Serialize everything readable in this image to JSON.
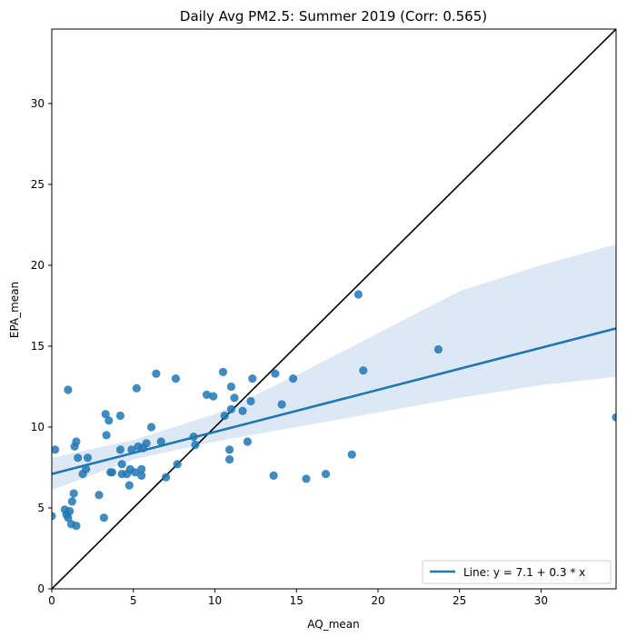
{
  "chart_data": {
    "type": "scatter",
    "title": "Daily Avg PM2.5: Summer 2019 (Corr: 0.565)",
    "xlabel": "AQ_mean",
    "ylabel": "EPA_mean",
    "xlim": [
      0,
      34.6
    ],
    "ylim": [
      0,
      34.6
    ],
    "xticks": [
      0,
      5,
      10,
      15,
      20,
      25,
      30
    ],
    "yticks": [
      0,
      5,
      10,
      15,
      20,
      25,
      30
    ],
    "grid": false,
    "legend": {
      "position": "lower-right",
      "entries": [
        "Line: y = 7.1 + 0.3 * x"
      ]
    },
    "colors": {
      "points": "#1f77b4",
      "regression": "#1f77b4",
      "band": "#aec7e8",
      "identity": "#000000"
    },
    "points": [
      [
        0.0,
        4.5
      ],
      [
        0.2,
        8.6
      ],
      [
        0.8,
        4.9
      ],
      [
        0.9,
        4.6
      ],
      [
        1.0,
        4.4
      ],
      [
        1.0,
        12.3
      ],
      [
        1.1,
        4.8
      ],
      [
        1.2,
        4.0
      ],
      [
        1.25,
        5.4
      ],
      [
        1.35,
        5.9
      ],
      [
        1.4,
        8.8
      ],
      [
        1.5,
        9.1
      ],
      [
        1.5,
        3.9
      ],
      [
        1.6,
        8.1
      ],
      [
        1.9,
        7.1
      ],
      [
        2.1,
        7.4
      ],
      [
        2.2,
        8.1
      ],
      [
        2.9,
        5.8
      ],
      [
        3.2,
        4.4
      ],
      [
        3.3,
        10.8
      ],
      [
        3.35,
        9.5
      ],
      [
        3.5,
        10.4
      ],
      [
        3.6,
        7.2
      ],
      [
        3.7,
        7.2
      ],
      [
        4.2,
        8.6
      ],
      [
        4.2,
        10.7
      ],
      [
        4.3,
        7.7
      ],
      [
        4.3,
        7.1
      ],
      [
        4.6,
        7.1
      ],
      [
        4.75,
        6.4
      ],
      [
        4.8,
        7.4
      ],
      [
        4.9,
        8.6
      ],
      [
        5.1,
        7.2
      ],
      [
        5.2,
        12.4
      ],
      [
        5.3,
        8.8
      ],
      [
        5.5,
        7.4
      ],
      [
        5.5,
        7.0
      ],
      [
        5.6,
        8.7
      ],
      [
        5.8,
        9.0
      ],
      [
        6.1,
        10.0
      ],
      [
        6.4,
        13.3
      ],
      [
        6.7,
        9.1
      ],
      [
        7.0,
        6.9
      ],
      [
        7.6,
        13.0
      ],
      [
        7.7,
        7.7
      ],
      [
        8.7,
        9.4
      ],
      [
        8.8,
        8.9
      ],
      [
        9.5,
        12.0
      ],
      [
        9.9,
        11.9
      ],
      [
        10.5,
        13.4
      ],
      [
        10.6,
        10.7
      ],
      [
        10.9,
        8.6
      ],
      [
        10.9,
        8.0
      ],
      [
        11.0,
        12.5
      ],
      [
        11.0,
        11.1
      ],
      [
        11.2,
        11.8
      ],
      [
        11.7,
        11.0
      ],
      [
        12.0,
        9.1
      ],
      [
        12.2,
        11.6
      ],
      [
        12.3,
        13.0
      ],
      [
        13.6,
        7.0
      ],
      [
        13.7,
        13.3
      ],
      [
        14.1,
        11.4
      ],
      [
        14.8,
        13.0
      ],
      [
        15.6,
        6.8
      ],
      [
        16.8,
        7.1
      ],
      [
        18.4,
        8.3
      ],
      [
        18.8,
        18.2
      ],
      [
        19.1,
        13.5
      ],
      [
        23.7,
        14.8
      ],
      [
        34.6,
        10.6
      ]
    ],
    "regression": {
      "intercept": 7.1,
      "slope": 0.26,
      "x_range": [
        0,
        34.6
      ]
    },
    "confidence_band": [
      [
        0,
        6.1,
        8.1
      ],
      [
        5,
        8.0,
        9.2
      ],
      [
        10,
        9.1,
        10.8
      ],
      [
        15,
        10.0,
        13.2
      ],
      [
        20,
        10.9,
        15.8
      ],
      [
        25,
        11.8,
        18.4
      ],
      [
        30,
        12.6,
        20.0
      ],
      [
        34.6,
        13.1,
        21.3
      ]
    ],
    "identity_line": [
      [
        0,
        0
      ],
      [
        34.6,
        34.6
      ]
    ]
  }
}
